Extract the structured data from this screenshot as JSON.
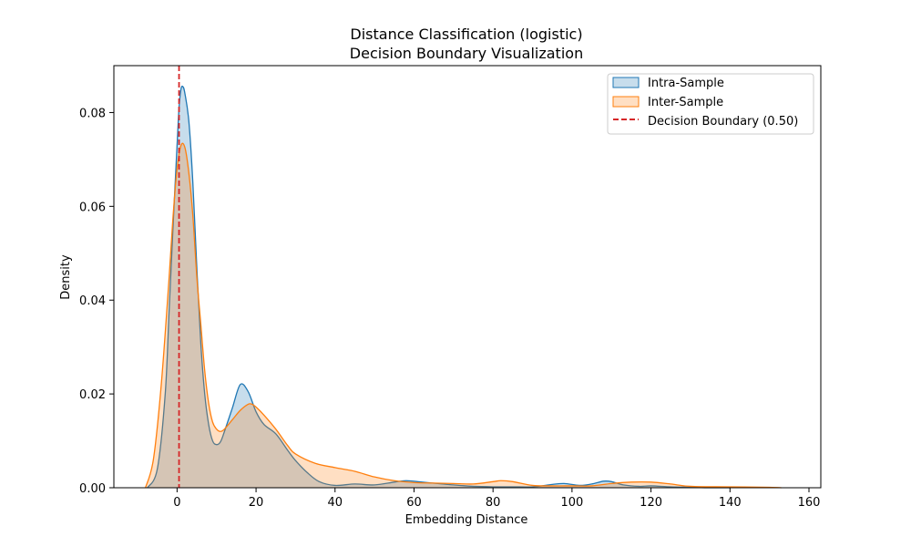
{
  "chart_data": {
    "type": "area",
    "title": "Distance Classification (logistic)",
    "subtitle": "Decision Boundary Visualization",
    "xlabel": "Embedding Distance",
    "ylabel": "Density",
    "xlim": [
      -16,
      163
    ],
    "ylim": [
      0,
      0.09
    ],
    "x_ticks": [
      0,
      20,
      40,
      60,
      80,
      100,
      120,
      140,
      160
    ],
    "y_ticks": [
      0.0,
      0.02,
      0.04,
      0.06,
      0.08
    ],
    "x_tick_labels": [
      "0",
      "20",
      "40",
      "60",
      "80",
      "100",
      "120",
      "140",
      "160"
    ],
    "y_tick_labels": [
      "0.00",
      "0.02",
      "0.04",
      "0.06",
      "0.08"
    ],
    "grid": false,
    "legend_position": "top-right",
    "series": [
      {
        "name": "Intra-Sample",
        "color": "#1f77b4",
        "fill": "#1f77b4",
        "x": [
          -7.5,
          -5,
          -3,
          -2,
          -1,
          0,
          0.5,
          1,
          1.5,
          2,
          3,
          4,
          5,
          6,
          7,
          8,
          9,
          10,
          11,
          12,
          14,
          16,
          18,
          20,
          22,
          25,
          28,
          30,
          33,
          36,
          40,
          45,
          50,
          55,
          58,
          62,
          66,
          70,
          75,
          80,
          85,
          90,
          95,
          98,
          102,
          105,
          108,
          110,
          113,
          117,
          120,
          125,
          130,
          135,
          140
        ],
        "values": [
          0.0,
          0.004,
          0.02,
          0.038,
          0.056,
          0.073,
          0.081,
          0.085,
          0.0855,
          0.084,
          0.078,
          0.065,
          0.047,
          0.031,
          0.02,
          0.0135,
          0.01,
          0.0092,
          0.0098,
          0.012,
          0.017,
          0.022,
          0.0205,
          0.0162,
          0.0135,
          0.0115,
          0.008,
          0.0058,
          0.0032,
          0.0013,
          0.0005,
          0.0008,
          0.0006,
          0.0012,
          0.0015,
          0.0012,
          0.0009,
          0.0006,
          0.0003,
          0.0002,
          0.0002,
          0.0002,
          0.0007,
          0.0009,
          0.0005,
          0.0008,
          0.0014,
          0.0013,
          0.0006,
          0.0003,
          0.0004,
          0.0002,
          0.0001,
          0.0,
          0.0
        ]
      },
      {
        "name": "Inter-Sample",
        "color": "#ff7f0e",
        "fill": "#ff7f0e",
        "x": [
          -8,
          -6,
          -4,
          -2,
          -1,
          0,
          1,
          2,
          3,
          4,
          5,
          6,
          7,
          8,
          9,
          10,
          11,
          12,
          14,
          16,
          18,
          19,
          20,
          22,
          25,
          28,
          30,
          35,
          40,
          45,
          50,
          55,
          60,
          65,
          70,
          75,
          80,
          82,
          85,
          90,
          95,
          100,
          105,
          110,
          115,
          120,
          125,
          130,
          140,
          150,
          153
        ],
        "values": [
          0.0,
          0.006,
          0.022,
          0.045,
          0.058,
          0.068,
          0.073,
          0.0725,
          0.067,
          0.058,
          0.045,
          0.035,
          0.025,
          0.018,
          0.014,
          0.0125,
          0.012,
          0.0125,
          0.0145,
          0.0165,
          0.0178,
          0.0178,
          0.0172,
          0.0155,
          0.0125,
          0.009,
          0.0072,
          0.0052,
          0.0043,
          0.0035,
          0.0023,
          0.0015,
          0.0011,
          0.001,
          0.0009,
          0.0008,
          0.0013,
          0.0015,
          0.0013,
          0.0005,
          0.0004,
          0.0004,
          0.0004,
          0.0009,
          0.0012,
          0.0012,
          0.0008,
          0.0003,
          0.0002,
          0.0001,
          0.0
        ]
      }
    ],
    "decision_boundary": {
      "name": "Decision Boundary (0.50)",
      "x": 0.5,
      "color": "#d62728",
      "style": "dashed"
    }
  }
}
